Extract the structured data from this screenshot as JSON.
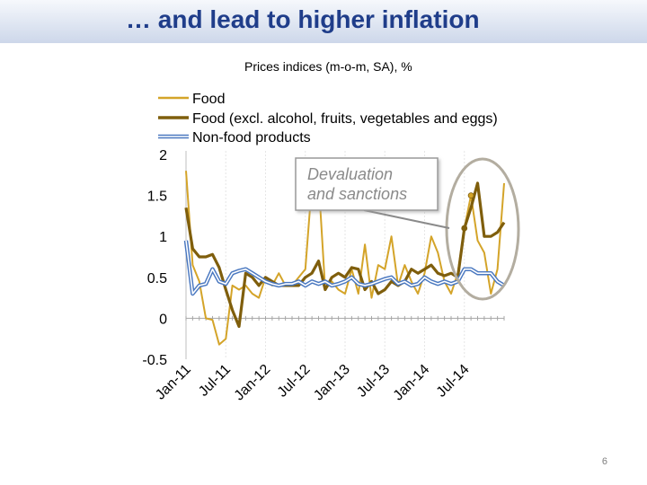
{
  "slide": {
    "title": "… and lead to higher inflation",
    "page_number": "6"
  },
  "chart_data": {
    "type": "line",
    "title": "Prices indices (m-o-m, SA), %",
    "ylim": [
      -0.5,
      2
    ],
    "y_ticks": [
      "2",
      "1.5",
      "1",
      "0.5",
      "0",
      "-0.5"
    ],
    "y_tick_values": [
      2,
      1.5,
      1,
      0.5,
      0,
      -0.5
    ],
    "x_tick_labels": [
      "Jan-11",
      "Jul-11",
      "Jan-12",
      "Jul-12",
      "Jan-13",
      "Jul-13",
      "Jan-14",
      "Jul-14"
    ],
    "x_tick_indices": [
      0,
      6,
      12,
      18,
      24,
      30,
      36,
      42
    ],
    "legend_position": "top-left",
    "grid": false,
    "annotation": {
      "text_lines": [
        "Devaluation",
        "and sanctions"
      ]
    },
    "series": [
      {
        "name": "Food",
        "color": "#d4a429",
        "values": [
          1.8,
          0.65,
          0.45,
          0.0,
          -0.02,
          -0.32,
          -0.25,
          0.4,
          0.35,
          0.4,
          0.3,
          0.25,
          0.5,
          0.4,
          0.55,
          0.4,
          0.4,
          0.5,
          0.6,
          1.65,
          1.7,
          0.35,
          0.45,
          0.35,
          0.3,
          0.6,
          0.3,
          0.9,
          0.25,
          0.65,
          0.6,
          1.0,
          0.4,
          0.65,
          0.45,
          0.3,
          0.55,
          1.0,
          0.8,
          0.45,
          0.3,
          0.55,
          1.1,
          1.5,
          0.95,
          0.8,
          0.3,
          0.6,
          1.65
        ]
      },
      {
        "name": "Food (excl. alcohol, fruits, vegetables and eggs)",
        "color": "#7f5e0c",
        "values": [
          1.35,
          0.85,
          0.75,
          0.75,
          0.78,
          0.62,
          0.35,
          0.1,
          -0.1,
          0.55,
          0.5,
          0.4,
          0.5,
          0.45,
          0.4,
          0.4,
          0.4,
          0.4,
          0.5,
          0.55,
          0.7,
          0.35,
          0.5,
          0.55,
          0.5,
          0.62,
          0.6,
          0.35,
          0.45,
          0.3,
          0.35,
          0.45,
          0.4,
          0.45,
          0.6,
          0.55,
          0.6,
          0.65,
          0.55,
          0.52,
          0.55,
          0.5,
          1.1,
          1.35,
          1.65,
          1.0,
          1.0,
          1.05,
          1.17
        ]
      },
      {
        "name": "Non-food products",
        "color": "#4a78c0",
        "values": [
          0.95,
          0.3,
          0.4,
          0.42,
          0.6,
          0.45,
          0.42,
          0.55,
          0.58,
          0.6,
          0.55,
          0.5,
          0.45,
          0.42,
          0.4,
          0.42,
          0.42,
          0.45,
          0.4,
          0.45,
          0.42,
          0.45,
          0.4,
          0.42,
          0.45,
          0.5,
          0.42,
          0.4,
          0.42,
          0.45,
          0.48,
          0.5,
          0.42,
          0.45,
          0.4,
          0.42,
          0.5,
          0.45,
          0.42,
          0.45,
          0.42,
          0.45,
          0.6,
          0.6,
          0.55,
          0.55,
          0.55,
          0.45,
          0.4
        ]
      }
    ]
  }
}
